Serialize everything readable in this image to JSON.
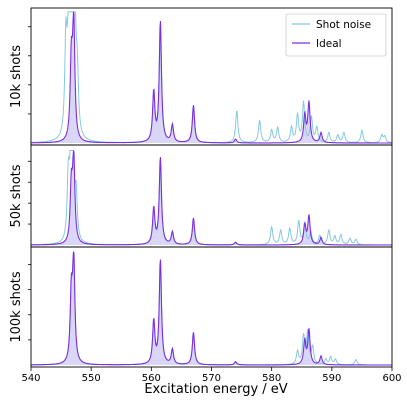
{
  "chart_data": {
    "type": "line",
    "xlabel": "Excitation energy / eV",
    "xlim": [
      540,
      600
    ],
    "xticks": [
      "540",
      "550",
      "560",
      "570",
      "580",
      "590",
      "600"
    ],
    "legend": {
      "placement": "top-right",
      "entries": [
        {
          "name": "Shot noise",
          "color": "#87c8e0"
        },
        {
          "name": "Ideal",
          "color": "#7b2fe0"
        }
      ]
    },
    "colors": {
      "shot_noise": "#87c8e0",
      "ideal": "#7b2fe0",
      "ideal_fill": "#b9b4f2"
    },
    "ideal_peaks": [
      {
        "x": 546.7,
        "y": 0.62
      },
      {
        "x": 547.1,
        "y": 0.95
      },
      {
        "x": 560.4,
        "y": 0.4
      },
      {
        "x": 561.5,
        "y": 0.97
      },
      {
        "x": 563.5,
        "y": 0.14
      },
      {
        "x": 567.0,
        "y": 0.3
      },
      {
        "x": 574.0,
        "y": 0.03
      },
      {
        "x": 585.5,
        "y": 0.22
      },
      {
        "x": 586.2,
        "y": 0.32
      },
      {
        "x": 588.2,
        "y": 0.08
      }
    ],
    "panels": [
      {
        "ylabel": "10k shots",
        "shot_noise_peaks": [
          {
            "x": 545.8,
            "y": 0.75
          },
          {
            "x": 546.2,
            "y": 0.62
          },
          {
            "x": 546.5,
            "y": 0.55
          },
          {
            "x": 546.9,
            "y": 0.92
          },
          {
            "x": 547.3,
            "y": 0.88
          },
          {
            "x": 547.7,
            "y": 0.45
          },
          {
            "x": 560.4,
            "y": 0.38
          },
          {
            "x": 561.5,
            "y": 0.96
          },
          {
            "x": 563.5,
            "y": 0.13
          },
          {
            "x": 567.0,
            "y": 0.3
          },
          {
            "x": 574.2,
            "y": 0.26
          },
          {
            "x": 578.0,
            "y": 0.18
          },
          {
            "x": 580.0,
            "y": 0.1
          },
          {
            "x": 581.0,
            "y": 0.12
          },
          {
            "x": 583.3,
            "y": 0.12
          },
          {
            "x": 584.3,
            "y": 0.22
          },
          {
            "x": 585.3,
            "y": 0.32
          },
          {
            "x": 586.6,
            "y": 0.2
          },
          {
            "x": 587.5,
            "y": 0.12
          },
          {
            "x": 589.5,
            "y": 0.08
          },
          {
            "x": 591.0,
            "y": 0.06
          },
          {
            "x": 592.0,
            "y": 0.08
          },
          {
            "x": 595.0,
            "y": 0.1
          },
          {
            "x": 598.3,
            "y": 0.06
          },
          {
            "x": 598.8,
            "y": 0.05
          }
        ]
      },
      {
        "ylabel": "50k shots",
        "shot_noise_peaks": [
          {
            "x": 546.2,
            "y": 0.7
          },
          {
            "x": 546.6,
            "y": 0.82
          },
          {
            "x": 547.0,
            "y": 0.9
          },
          {
            "x": 547.5,
            "y": 0.5
          },
          {
            "x": 560.4,
            "y": 0.36
          },
          {
            "x": 561.5,
            "y": 0.93
          },
          {
            "x": 563.5,
            "y": 0.12
          },
          {
            "x": 567.0,
            "y": 0.26
          },
          {
            "x": 574.0,
            "y": 0.03
          },
          {
            "x": 580.0,
            "y": 0.2
          },
          {
            "x": 581.5,
            "y": 0.16
          },
          {
            "x": 583.0,
            "y": 0.18
          },
          {
            "x": 584.5,
            "y": 0.26
          },
          {
            "x": 585.5,
            "y": 0.24
          },
          {
            "x": 586.5,
            "y": 0.14
          },
          {
            "x": 588.0,
            "y": 0.1
          },
          {
            "x": 589.5,
            "y": 0.16
          },
          {
            "x": 590.5,
            "y": 0.09
          },
          {
            "x": 591.5,
            "y": 0.11
          },
          {
            "x": 593.0,
            "y": 0.07
          },
          {
            "x": 594.0,
            "y": 0.06
          }
        ]
      },
      {
        "ylabel": "100k shots",
        "shot_noise_peaks": [
          {
            "x": 546.7,
            "y": 0.6
          },
          {
            "x": 547.1,
            "y": 0.93
          },
          {
            "x": 560.4,
            "y": 0.4
          },
          {
            "x": 561.5,
            "y": 0.96
          },
          {
            "x": 563.5,
            "y": 0.14
          },
          {
            "x": 567.0,
            "y": 0.3
          },
          {
            "x": 574.0,
            "y": 0.03
          },
          {
            "x": 584.3,
            "y": 0.12
          },
          {
            "x": 585.3,
            "y": 0.26
          },
          {
            "x": 586.0,
            "y": 0.3
          },
          {
            "x": 586.8,
            "y": 0.16
          },
          {
            "x": 589.0,
            "y": 0.05
          },
          {
            "x": 589.8,
            "y": 0.07
          },
          {
            "x": 590.6,
            "y": 0.05
          },
          {
            "x": 594.0,
            "y": 0.05
          }
        ]
      }
    ]
  }
}
